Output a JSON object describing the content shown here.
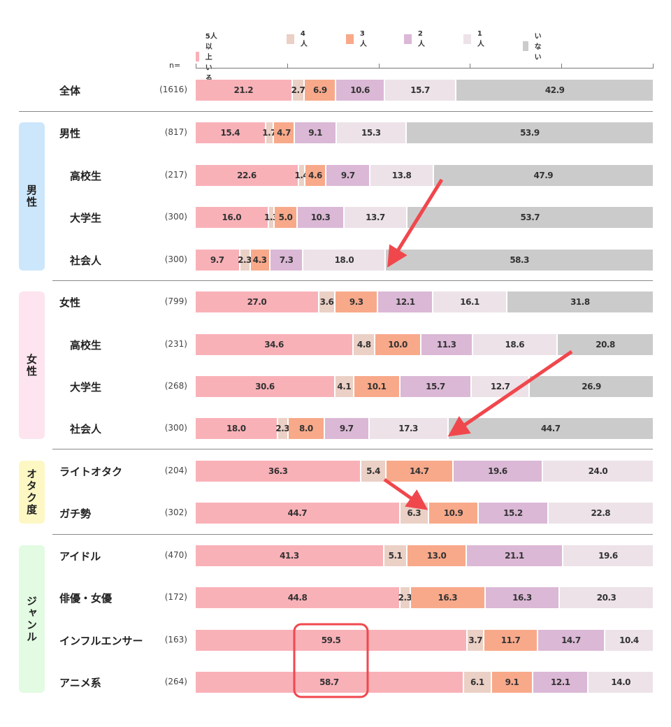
{
  "chart_data": {
    "type": "bar",
    "orientation": "horizontal-stacked-100",
    "n_label": "n=",
    "legend": [
      {
        "name": "5人以上いる",
        "color": "#f9b1b8"
      },
      {
        "name": "4人",
        "color": "#ebd0c6"
      },
      {
        "name": "3人",
        "color": "#f8a98a"
      },
      {
        "name": "2人",
        "color": "#dbb8d6"
      },
      {
        "name": "1人",
        "color": "#ece2e8"
      },
      {
        "name": "いない",
        "color": "#cbcbcb"
      }
    ],
    "groups": [
      {
        "label": "",
        "color": "",
        "rows": [
          0
        ]
      },
      {
        "label": "男性",
        "color": "#cce6fb",
        "rows": [
          1,
          2,
          3,
          4
        ]
      },
      {
        "label": "女性",
        "color": "#fde4ee",
        "rows": [
          5,
          6,
          7,
          8
        ]
      },
      {
        "label": "オタク度",
        "color": "#fdf7c4",
        "rows": [
          9,
          10
        ]
      },
      {
        "label": "ジャンル",
        "color": "#e2fbe2",
        "rows": [
          11,
          12,
          13,
          14
        ]
      }
    ],
    "rows": [
      {
        "label": "全体",
        "n": "(1616)",
        "indent": false,
        "values": [
          21.2,
          2.7,
          6.9,
          10.6,
          15.7,
          42.9
        ]
      },
      {
        "label": "男性",
        "n": "(817)",
        "indent": false,
        "values": [
          15.4,
          1.7,
          4.7,
          9.1,
          15.3,
          53.9
        ]
      },
      {
        "label": "高校生",
        "n": "(217)",
        "indent": true,
        "values": [
          22.6,
          1.4,
          4.6,
          9.7,
          13.8,
          47.9
        ]
      },
      {
        "label": "大学生",
        "n": "(300)",
        "indent": true,
        "values": [
          16.0,
          1.3,
          5.0,
          10.3,
          13.7,
          53.7
        ]
      },
      {
        "label": "社会人",
        "n": "(300)",
        "indent": true,
        "values": [
          9.7,
          2.3,
          4.3,
          7.3,
          18.0,
          58.3
        ]
      },
      {
        "label": "女性",
        "n": "(799)",
        "indent": false,
        "values": [
          27.0,
          3.6,
          9.3,
          12.1,
          16.1,
          31.8
        ]
      },
      {
        "label": "高校生",
        "n": "(231)",
        "indent": true,
        "values": [
          34.6,
          4.8,
          10.0,
          11.3,
          18.6,
          20.8
        ]
      },
      {
        "label": "大学生",
        "n": "(268)",
        "indent": true,
        "values": [
          30.6,
          4.1,
          10.1,
          15.7,
          12.7,
          26.9
        ]
      },
      {
        "label": "社会人",
        "n": "(300)",
        "indent": true,
        "values": [
          18.0,
          2.3,
          8.0,
          9.7,
          17.3,
          44.7
        ]
      },
      {
        "label": "ライトオタク",
        "n": "(204)",
        "indent": false,
        "values": [
          36.3,
          5.4,
          14.7,
          19.6,
          24.0
        ]
      },
      {
        "label": "ガチ勢",
        "n": "(302)",
        "indent": false,
        "values": [
          44.7,
          6.3,
          10.9,
          15.2,
          22.8
        ]
      },
      {
        "label": "アイドル",
        "n": "(470)",
        "indent": false,
        "values": [
          41.3,
          5.1,
          13.0,
          21.1,
          19.6
        ]
      },
      {
        "label": "俳優・女優",
        "n": "(172)",
        "indent": false,
        "values": [
          44.8,
          2.3,
          16.3,
          16.3,
          20.3
        ]
      },
      {
        "label": "インフルエンサー",
        "n": "(163)",
        "indent": false,
        "values": [
          59.5,
          3.7,
          11.7,
          14.7,
          10.4
        ]
      },
      {
        "label": "アニメ系",
        "n": "(264)",
        "indent": false,
        "values": [
          58.7,
          6.1,
          9.1,
          12.1,
          14.0
        ]
      }
    ],
    "annotation_color": "#f0474d"
  }
}
